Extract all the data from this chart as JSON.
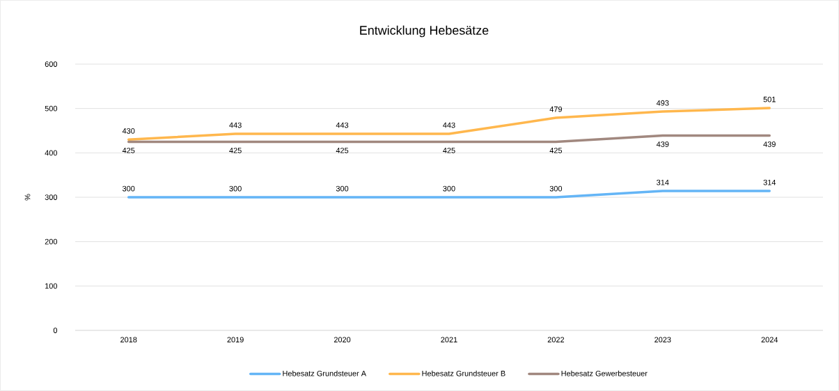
{
  "chart_data": {
    "type": "line",
    "title": "Entwicklung Hebesätze",
    "ylabel": "%",
    "categories": [
      "2018",
      "2019",
      "2020",
      "2021",
      "2022",
      "2023",
      "2024"
    ],
    "series": [
      {
        "name": "Hebesatz Grundsteuer A",
        "color": "#64b5f6",
        "values": [
          300,
          300,
          300,
          300,
          300,
          314,
          314
        ]
      },
      {
        "name": "Hebesatz Grundsteuer B",
        "color": "#ffb74d",
        "values": [
          430,
          443,
          443,
          443,
          479,
          493,
          501
        ]
      },
      {
        "name": "Hebesatz Gewerbesteuer",
        "color": "#a1887f",
        "values": [
          425,
          425,
          425,
          425,
          425,
          439,
          439
        ]
      }
    ],
    "ylim": [
      0,
      600
    ],
    "yticks": [
      0,
      100,
      200,
      300,
      400,
      500,
      600
    ],
    "grid": "y",
    "legend": "bottom",
    "data_labels": true,
    "marker": "none",
    "line_style": "solid"
  }
}
